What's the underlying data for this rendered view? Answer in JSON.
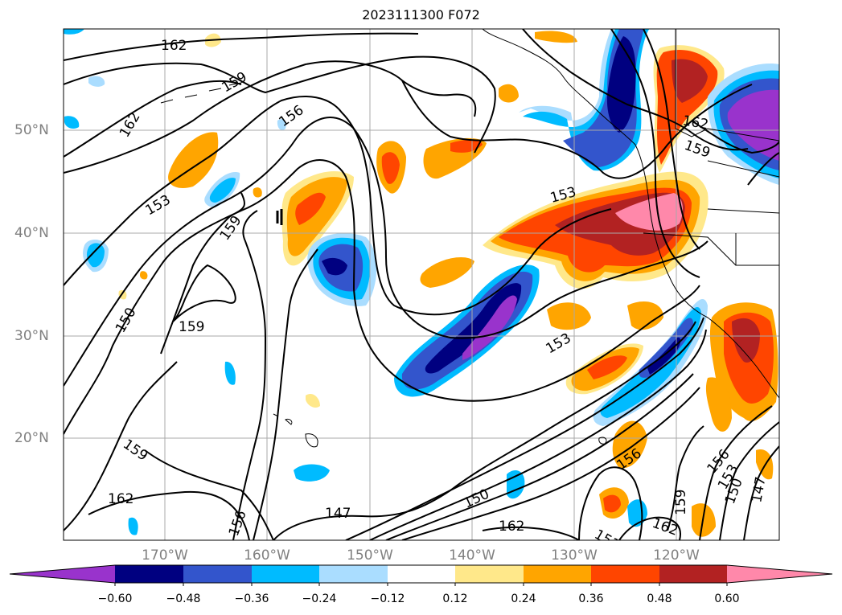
{
  "title": "2023111300 F072",
  "lat_labels": [
    "50°N",
    "40°N",
    "30°N",
    "20°N"
  ],
  "lon_labels": [
    "170°W",
    "160°W",
    "150°W",
    "140°W",
    "130°W",
    "120°W"
  ],
  "colorbar": {
    "ticks": [
      "−0.60",
      "−0.48",
      "−0.36",
      "−0.24",
      "−0.12",
      "0.12",
      "0.24",
      "0.36",
      "0.48",
      "0.60"
    ],
    "colors": [
      "#9933cc",
      "#000080",
      "#3355cc",
      "#00bbff",
      "#aaddff",
      "#ffffff",
      "#ffe88a",
      "#ffa500",
      "#ff4500",
      "#b22222",
      "#ff88aa"
    ]
  },
  "contour_labels": [
    "162",
    "159",
    "156",
    "162",
    "153",
    "159",
    "150",
    "159",
    "153",
    "159",
    "162",
    "156",
    "147",
    "150",
    "162",
    "153",
    "156",
    "159",
    "156",
    "153",
    "150",
    "147",
    "162",
    "159",
    "162",
    "153"
  ]
}
